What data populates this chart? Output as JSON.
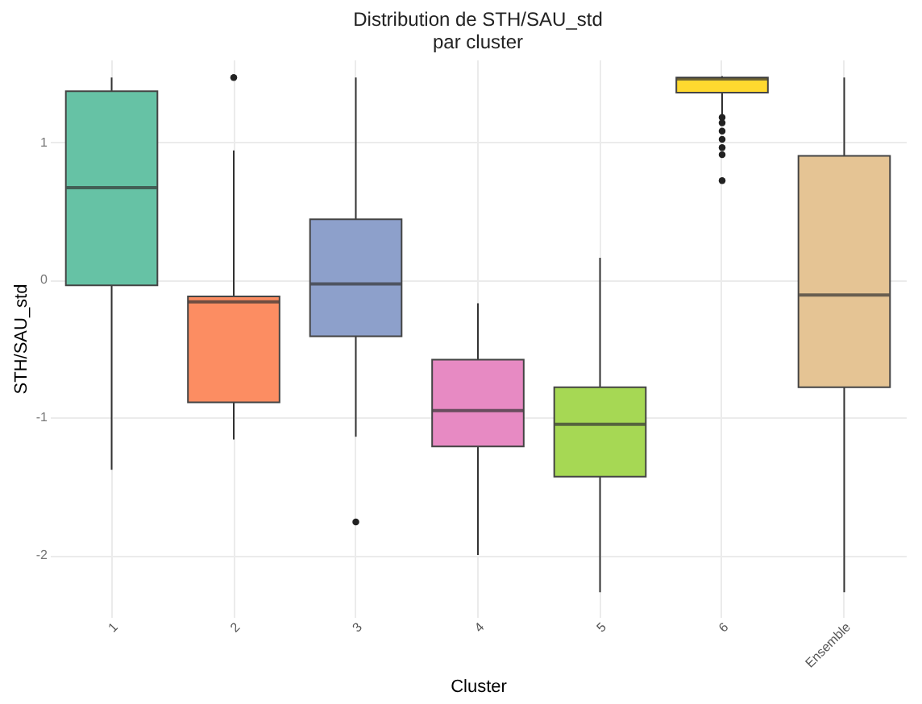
{
  "chart_data": {
    "type": "box",
    "title": "Distribution de STH/SAU_std\npar cluster",
    "xlabel": "Cluster",
    "ylabel": "STH/SAU_std",
    "categories": [
      "1",
      "2",
      "3",
      "4",
      "5",
      "6",
      "Ensemble"
    ],
    "colors": [
      "#66c2a5",
      "#fc8d62",
      "#8da0cb",
      "#e78ac3",
      "#a6d854",
      "#ffd92f",
      "#e5c494"
    ],
    "boxes": [
      {
        "low": -1.38,
        "q1": -0.04,
        "median": 0.67,
        "q3": 1.37,
        "high": 1.47
      },
      {
        "low": -1.16,
        "q1": -0.89,
        "median": -0.16,
        "q3": -0.12,
        "high": 0.94,
        "outliers": [
          1.47
        ]
      },
      {
        "low": -1.14,
        "q1": -0.41,
        "median": -0.03,
        "q3": 0.44,
        "high": 1.47,
        "outliers": [
          -1.76
        ]
      },
      {
        "low": -2.0,
        "q1": -1.21,
        "median": -0.95,
        "q3": -0.58,
        "high": -0.17
      },
      {
        "low": -2.27,
        "q1": -1.43,
        "median": -1.05,
        "q3": -0.78,
        "high": 0.16
      },
      {
        "low": 1.2,
        "q1": 1.36,
        "median": 1.46,
        "q3": 1.47,
        "high": 1.48,
        "outliers": [
          1.18,
          1.14,
          1.08,
          1.02,
          0.96,
          0.91,
          0.72
        ]
      },
      {
        "low": -2.27,
        "q1": -0.78,
        "median": -0.11,
        "q3": 0.9,
        "high": 1.47
      }
    ],
    "ylim": [
      -2.45,
      1.6
    ],
    "yticks": [
      -2,
      -1,
      0,
      1
    ],
    "grid": true,
    "legend": false
  }
}
